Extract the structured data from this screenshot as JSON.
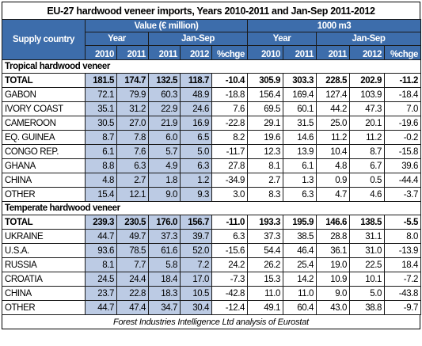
{
  "title": "EU-27 hardwood veneer imports, Years 2010-2011 and Jan-Sep 2011-2012",
  "header": {
    "supply_country": "Supply country",
    "value_group": "Value (€ million)",
    "volume_group": "1000 m3",
    "year": "Year",
    "jan_sep": "Jan-Sep",
    "cols": [
      "2010",
      "2011",
      "2011",
      "2012",
      "%chge",
      "2010",
      "2011",
      "2011",
      "2012",
      "%chge"
    ]
  },
  "sections": [
    {
      "label": "Tropical hardwood veneer",
      "rows": [
        {
          "country": "TOTAL",
          "bold": true,
          "v": [
            "181.5",
            "174.7",
            "132.5",
            "118.7",
            "-10.4",
            "305.9",
            "303.3",
            "228.5",
            "202.9",
            "-11.2"
          ]
        },
        {
          "country": "GABON",
          "v": [
            "72.1",
            "79.9",
            "60.3",
            "48.9",
            "-18.8",
            "156.4",
            "169.4",
            "127.4",
            "103.9",
            "-18.4"
          ]
        },
        {
          "country": "IVORY COAST",
          "v": [
            "35.1",
            "31.2",
            "22.9",
            "24.6",
            "7.6",
            "69.5",
            "60.1",
            "44.2",
            "47.3",
            "7.0"
          ]
        },
        {
          "country": "CAMEROON",
          "v": [
            "30.5",
            "27.0",
            "21.9",
            "16.9",
            "-22.8",
            "29.1",
            "31.5",
            "25.0",
            "20.1",
            "-19.6"
          ]
        },
        {
          "country": "EQ. GUINEA",
          "v": [
            "8.7",
            "7.8",
            "6.0",
            "6.5",
            "8.2",
            "19.6",
            "14.6",
            "11.2",
            "11.2",
            "-0.2"
          ]
        },
        {
          "country": "CONGO REP.",
          "v": [
            "6.1",
            "7.6",
            "5.7",
            "5.0",
            "-11.7",
            "12.3",
            "13.9",
            "10.4",
            "8.7",
            "-15.8"
          ]
        },
        {
          "country": "GHANA",
          "v": [
            "8.8",
            "6.3",
            "4.9",
            "6.3",
            "27.8",
            "8.1",
            "6.1",
            "4.8",
            "6.7",
            "39.6"
          ]
        },
        {
          "country": "CHINA",
          "v": [
            "4.8",
            "2.7",
            "1.8",
            "1.2",
            "-34.9",
            "2.7",
            "1.3",
            "0.9",
            "0.5",
            "-44.4"
          ]
        },
        {
          "country": "OTHER",
          "v": [
            "15.4",
            "12.1",
            "9.0",
            "9.3",
            "3.0",
            "8.3",
            "6.3",
            "4.7",
            "4.6",
            "-3.7"
          ]
        }
      ]
    },
    {
      "label": "Temperate hardwood veneer",
      "rows": [
        {
          "country": "TOTAL",
          "bold": true,
          "v": [
            "239.3",
            "230.5",
            "176.0",
            "156.7",
            "-11.0",
            "193.3",
            "195.9",
            "146.6",
            "138.5",
            "-5.5"
          ]
        },
        {
          "country": "UKRAINE",
          "v": [
            "44.7",
            "49.7",
            "37.3",
            "39.7",
            "6.3",
            "37.3",
            "38.5",
            "28.8",
            "31.1",
            "8.0"
          ]
        },
        {
          "country": "U.S.A.",
          "v": [
            "93.6",
            "78.5",
            "61.6",
            "52.0",
            "-15.6",
            "54.4",
            "46.4",
            "36.1",
            "31.0",
            "-13.9"
          ]
        },
        {
          "country": "RUSSIA",
          "v": [
            "8.1",
            "7.7",
            "5.8",
            "7.2",
            "24.2",
            "26.2",
            "25.4",
            "19.0",
            "22.5",
            "18.4"
          ]
        },
        {
          "country": "CROATIA",
          "v": [
            "24.5",
            "24.4",
            "18.4",
            "17.0",
            "-7.3",
            "15.3",
            "14.2",
            "10.9",
            "10.1",
            "-7.2"
          ]
        },
        {
          "country": "CHINA",
          "v": [
            "23.7",
            "22.8",
            "18.3",
            "10.5",
            "-42.8",
            "11.0",
            "11.0",
            "9.0",
            "5.0",
            "-43.8"
          ]
        },
        {
          "country": "OTHER",
          "v": [
            "44.7",
            "47.4",
            "34.7",
            "30.4",
            "-12.4",
            "49.1",
            "60.4",
            "43.0",
            "38.8",
            "-9.7"
          ]
        }
      ]
    }
  ],
  "footer": "Forest Industries Intelligence Ltd analysis of Eurostat",
  "colors": {
    "header_bg": "#3d6dab",
    "value_cell_bg": "#bccbe4",
    "header_text": "#ffffff"
  }
}
